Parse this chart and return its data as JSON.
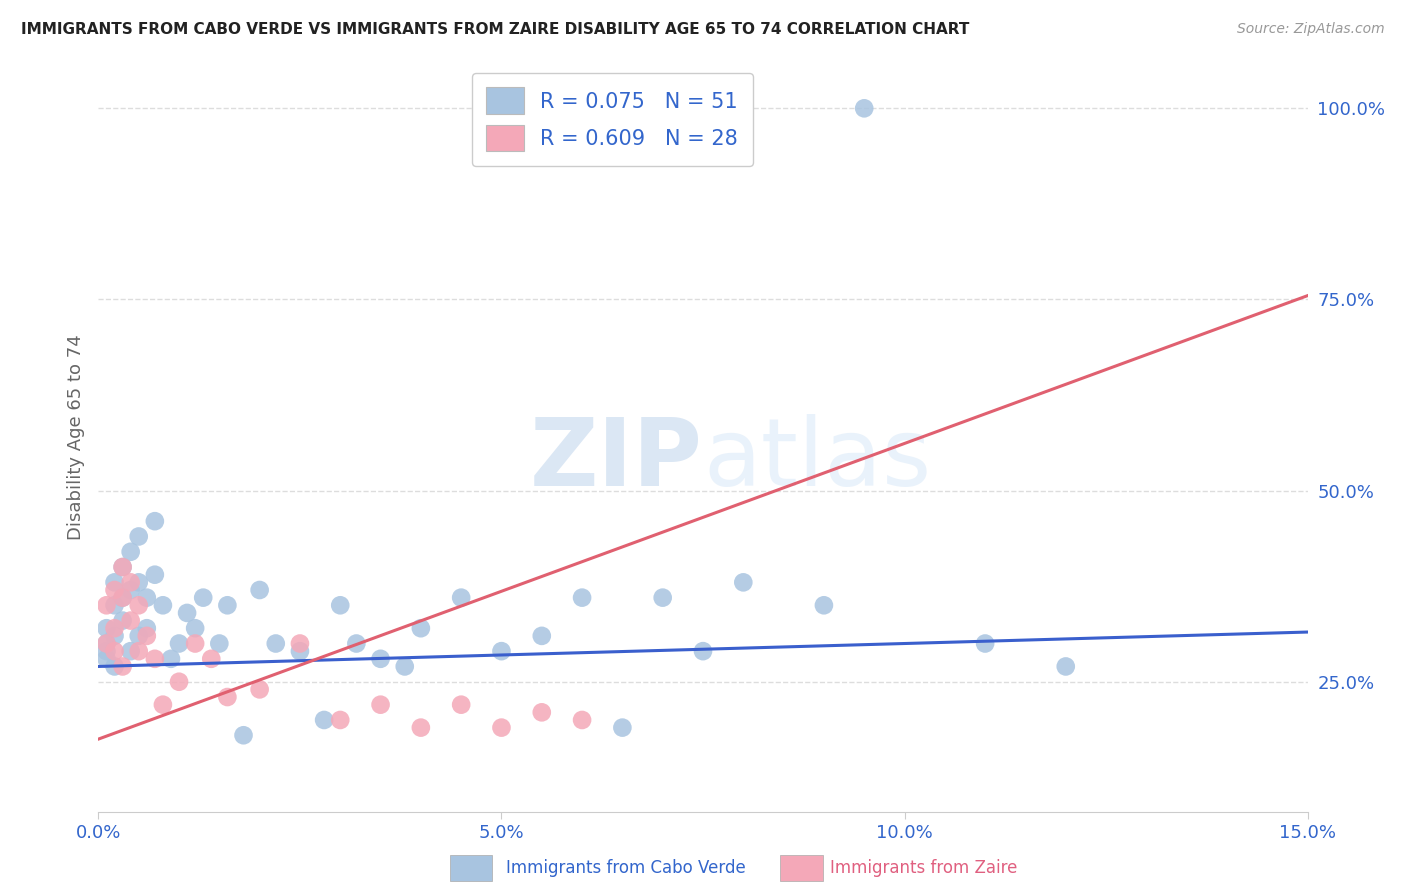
{
  "title": "IMMIGRANTS FROM CABO VERDE VS IMMIGRANTS FROM ZAIRE DISABILITY AGE 65 TO 74 CORRELATION CHART",
  "source": "Source: ZipAtlas.com",
  "ylabel": "Disability Age 65 to 74",
  "legend_label_blue": "Immigrants from Cabo Verde",
  "legend_label_pink": "Immigrants from Zaire",
  "R_blue": 0.075,
  "N_blue": 51,
  "R_pink": 0.609,
  "N_pink": 28,
  "color_blue": "#a8c4e0",
  "color_pink": "#f4a8b8",
  "line_blue": "#3a5fcd",
  "line_pink": "#e06070",
  "watermark_color": "#ccddf0",
  "background_color": "#ffffff",
  "grid_color": "#dddddd",
  "cabo_verde_x": [
    0.001,
    0.001,
    0.001,
    0.001,
    0.002,
    0.002,
    0.002,
    0.002,
    0.003,
    0.003,
    0.003,
    0.004,
    0.004,
    0.004,
    0.005,
    0.005,
    0.005,
    0.006,
    0.006,
    0.007,
    0.007,
    0.008,
    0.009,
    0.01,
    0.011,
    0.012,
    0.013,
    0.015,
    0.016,
    0.018,
    0.02,
    0.022,
    0.025,
    0.028,
    0.03,
    0.032,
    0.035,
    0.038,
    0.04,
    0.045,
    0.05,
    0.055,
    0.06,
    0.065,
    0.07,
    0.075,
    0.08,
    0.09,
    0.095,
    0.11,
    0.12
  ],
  "cabo_verde_y": [
    0.3,
    0.32,
    0.29,
    0.28,
    0.38,
    0.35,
    0.31,
    0.27,
    0.4,
    0.36,
    0.33,
    0.42,
    0.37,
    0.29,
    0.44,
    0.38,
    0.31,
    0.36,
    0.32,
    0.46,
    0.39,
    0.35,
    0.28,
    0.3,
    0.34,
    0.32,
    0.36,
    0.3,
    0.35,
    0.18,
    0.37,
    0.3,
    0.29,
    0.2,
    0.35,
    0.3,
    0.28,
    0.27,
    0.32,
    0.36,
    0.29,
    0.31,
    0.36,
    0.19,
    0.36,
    0.29,
    0.38,
    0.35,
    1.0,
    0.3,
    0.27
  ],
  "zaire_x": [
    0.001,
    0.001,
    0.002,
    0.002,
    0.002,
    0.003,
    0.003,
    0.003,
    0.004,
    0.004,
    0.005,
    0.005,
    0.006,
    0.007,
    0.008,
    0.01,
    0.012,
    0.014,
    0.016,
    0.02,
    0.025,
    0.03,
    0.035,
    0.04,
    0.045,
    0.05,
    0.055,
    0.06
  ],
  "zaire_y": [
    0.3,
    0.35,
    0.37,
    0.32,
    0.29,
    0.4,
    0.36,
    0.27,
    0.38,
    0.33,
    0.35,
    0.29,
    0.31,
    0.28,
    0.22,
    0.25,
    0.3,
    0.28,
    0.23,
    0.24,
    0.3,
    0.2,
    0.22,
    0.19,
    0.22,
    0.19,
    0.21,
    0.2
  ],
  "blue_line_x": [
    0.0,
    0.15
  ],
  "blue_line_y": [
    0.27,
    0.315
  ],
  "pink_line_x": [
    0.0,
    0.15
  ],
  "pink_line_y": [
    0.175,
    0.755
  ],
  "xlim": [
    0.0,
    0.15
  ],
  "ylim": [
    0.08,
    1.06
  ],
  "xticks": [
    0.0,
    0.05,
    0.1,
    0.15
  ],
  "xticklabels": [
    "0.0%",
    "5.0%",
    "10.0%",
    "15.0%"
  ],
  "yticks_right": [
    0.25,
    0.5,
    0.75,
    1.0
  ],
  "yticklabels_right": [
    "25.0%",
    "50.0%",
    "75.0%",
    "100.0%"
  ]
}
